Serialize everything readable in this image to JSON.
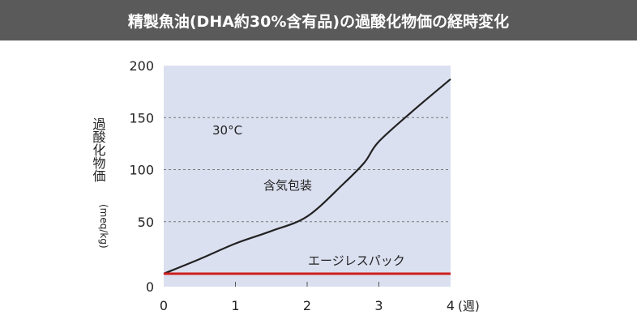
{
  "title": "精製魚油(DHA約30%含有品)の過酸化物価の経時変化",
  "chart_data": {
    "type": "line",
    "title": "精製魚油(DHA約30%含有品)の過酸化物価の経時変化",
    "xlabel": "(週)",
    "ylabel": "過酸化物価",
    "ylabel_unit": "(meq/kg)",
    "xlim": [
      0,
      4
    ],
    "ylim": [
      0,
      200
    ],
    "xticks": [
      "0",
      "1",
      "2",
      "3",
      "4"
    ],
    "yticks": [
      "0",
      "50",
      "100",
      "150",
      "200"
    ],
    "grid": "horizontal dashed",
    "annotation": "30°C",
    "series": [
      {
        "name": "含気包装",
        "color": "#222222",
        "x": [
          0,
          0.5,
          1,
          1.5,
          2,
          2.5,
          2.8,
          3,
          3.5,
          4
        ],
        "y": [
          0,
          14,
          29,
          41,
          55,
          86,
          107,
          127,
          158,
          187
        ]
      },
      {
        "name": "エージレスパック",
        "color": "#cc1f1f",
        "x": [
          0,
          1,
          2,
          3,
          4
        ],
        "y": [
          0,
          0,
          0,
          0,
          0
        ]
      }
    ],
    "background": "#dbe0f0"
  }
}
